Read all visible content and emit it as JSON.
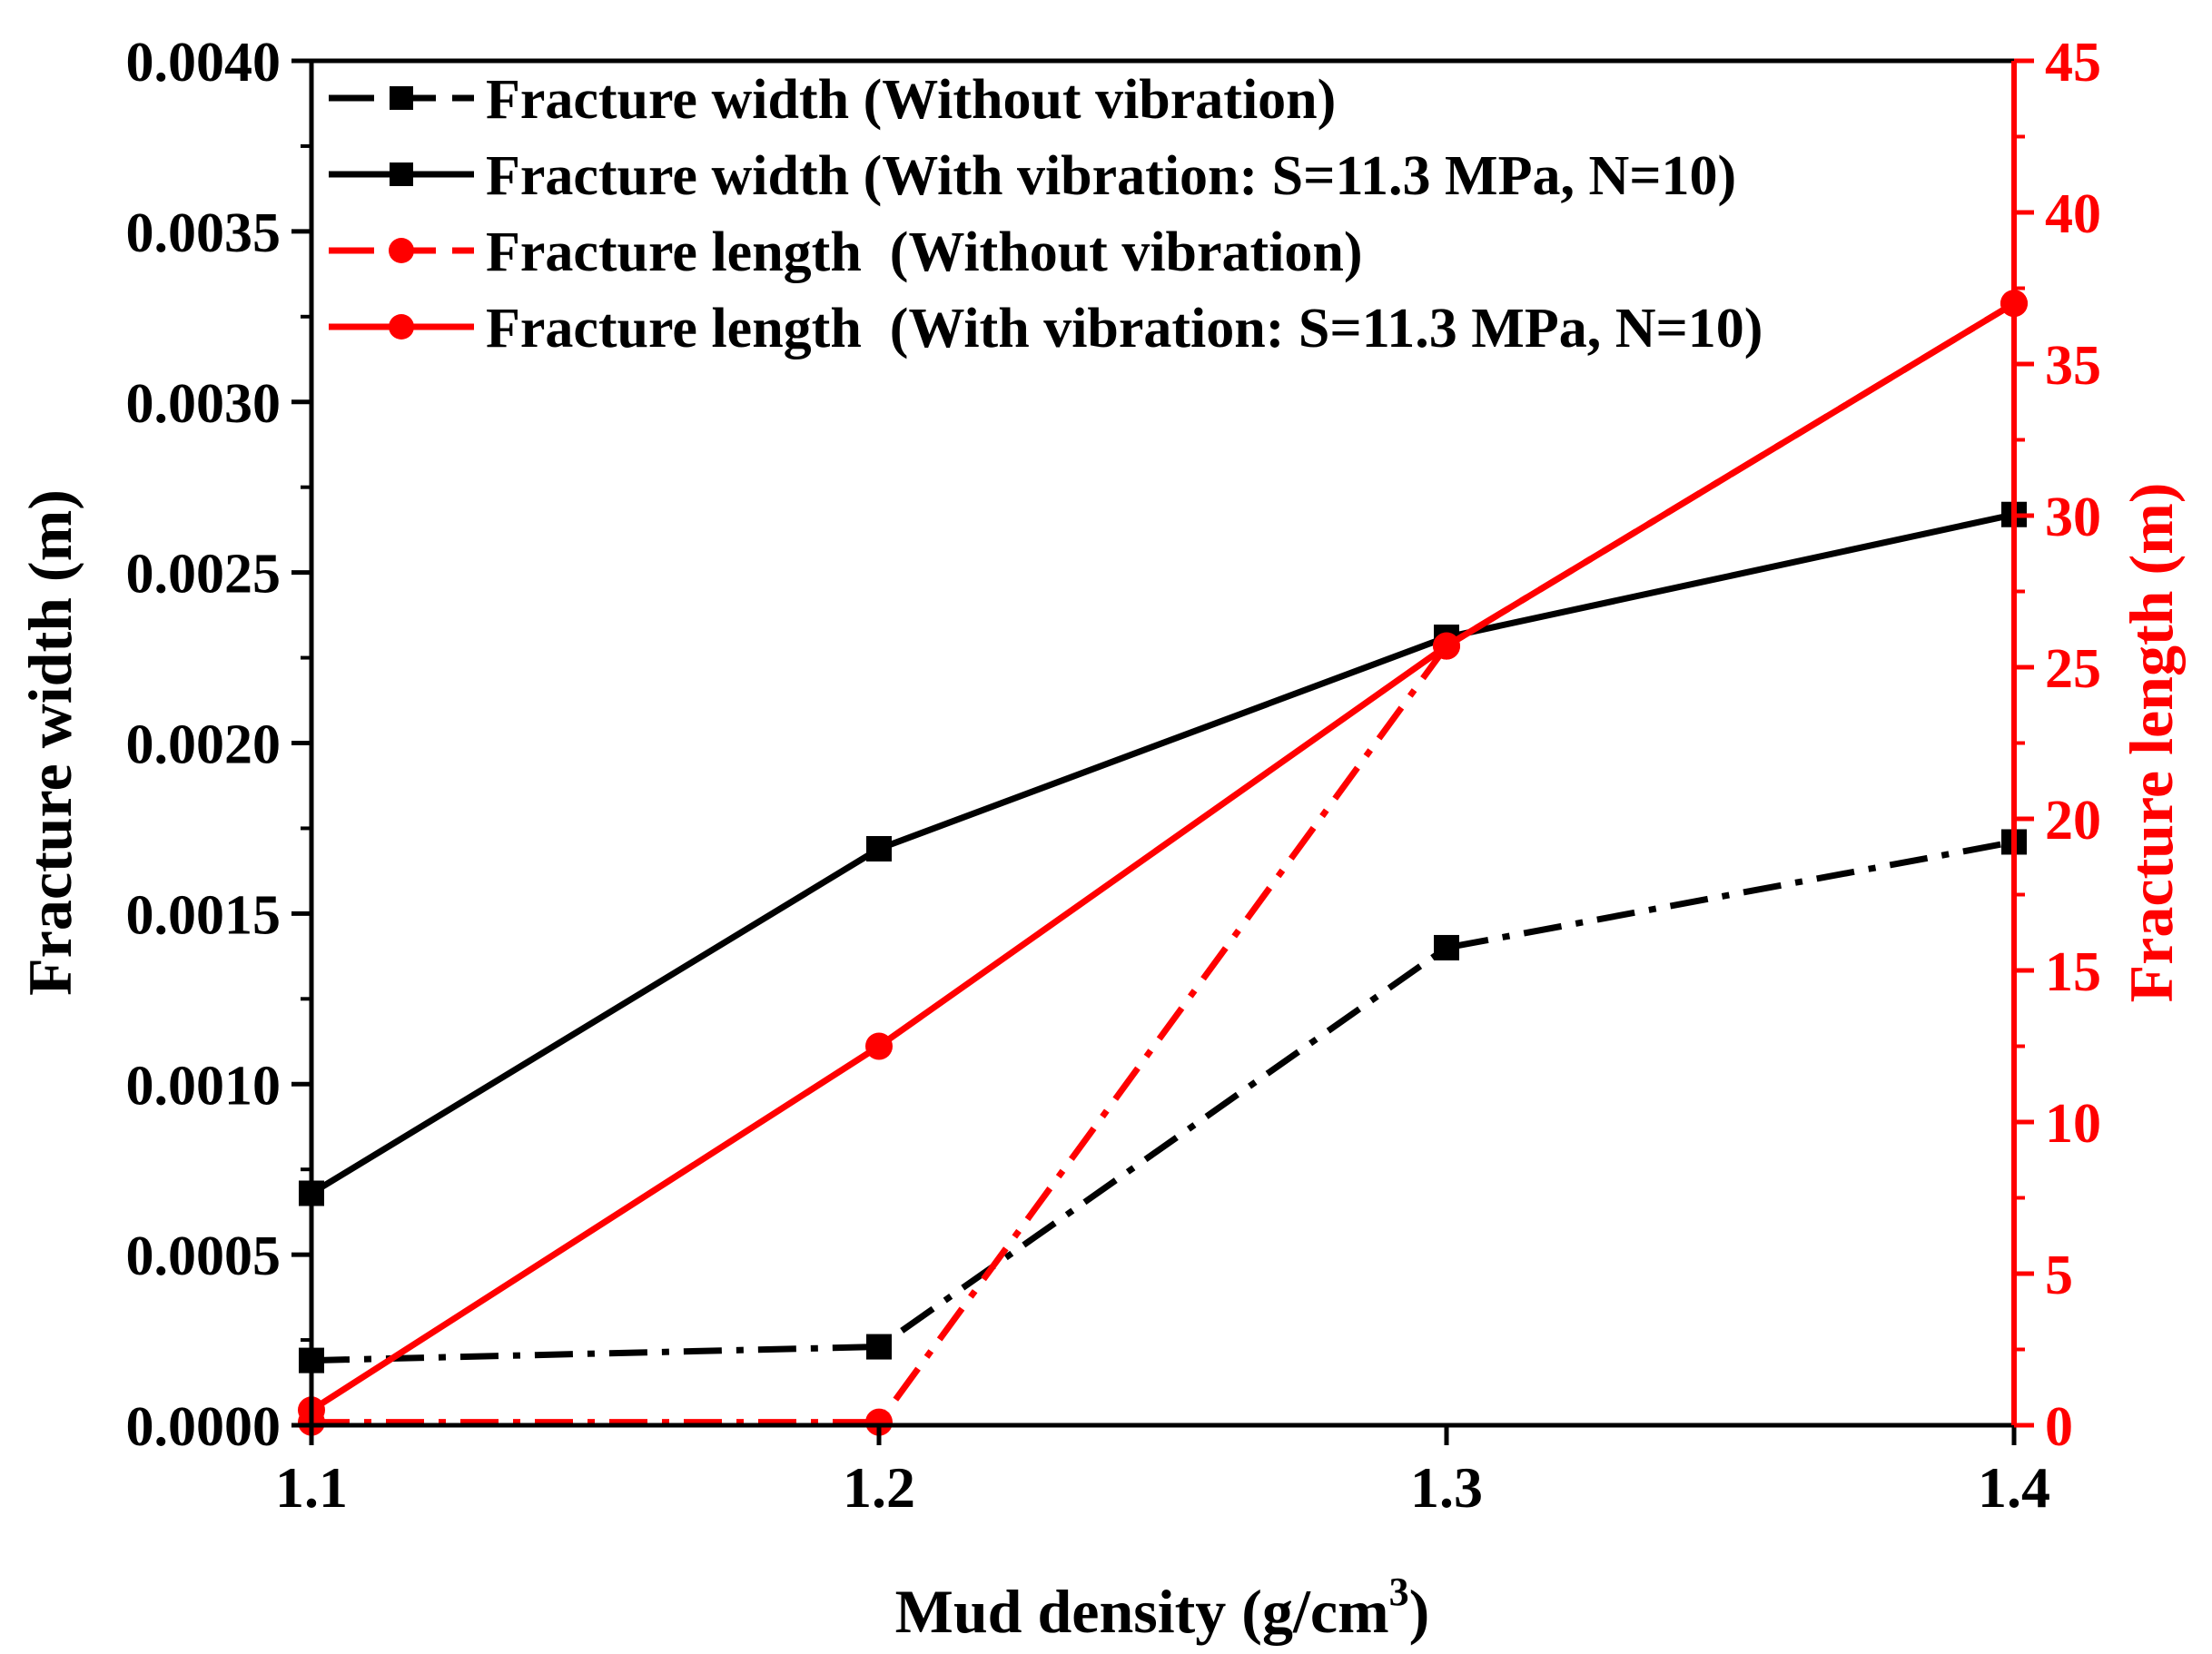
{
  "chart_data": {
    "type": "line",
    "x": [
      1.1,
      1.2,
      1.3,
      1.4
    ],
    "xlim": [
      1.1,
      1.4
    ],
    "x_ticks": [
      "1.1",
      "1.2",
      "1.3",
      "1.4"
    ],
    "xlabel": "Mud density (g/cm",
    "xlabel_superscript": "3",
    "xlabel_close": ")",
    "y_left": {
      "label": "Fracture width (m)",
      "lim": [
        0,
        0.004
      ],
      "ticks": [
        "0.0000",
        "0.0005",
        "0.0010",
        "0.0015",
        "0.0020",
        "0.0025",
        "0.0030",
        "0.0035",
        "0.0040"
      ],
      "color": "#000000"
    },
    "y_right": {
      "label": "Fracture length (m)",
      "lim": [
        0,
        45
      ],
      "ticks": [
        "0",
        "5",
        "10",
        "15",
        "20",
        "25",
        "30",
        "35",
        "40",
        "45"
      ],
      "color": "#ff0000"
    },
    "series": [
      {
        "name": "Fracture width (Without vibration)",
        "axis": "left",
        "color": "#000000",
        "line_style": "dashdot",
        "marker": "square",
        "values": [
          0.00019,
          0.00023,
          0.0014,
          0.00171
        ]
      },
      {
        "name": "Fracture width (With vibration: S=11.3 MPa, N=10)",
        "axis": "left",
        "color": "#000000",
        "line_style": "solid",
        "marker": "square",
        "values": [
          0.00068,
          0.00169,
          0.00231,
          0.00267
        ]
      },
      {
        "name": "Fracture length  (Without vibration)",
        "axis": "right",
        "color": "#ff0000",
        "line_style": "dashdot",
        "marker": "circle",
        "values": [
          0.1,
          0.1,
          25.7,
          37.0
        ]
      },
      {
        "name": "Fracture length  (With vibration: S=11.3 MPa, N=10)",
        "axis": "right",
        "color": "#ff0000",
        "line_style": "solid",
        "marker": "circle",
        "values": [
          0.5,
          12.5,
          25.7,
          37.0
        ]
      }
    ],
    "legend_position": "top-left"
  }
}
